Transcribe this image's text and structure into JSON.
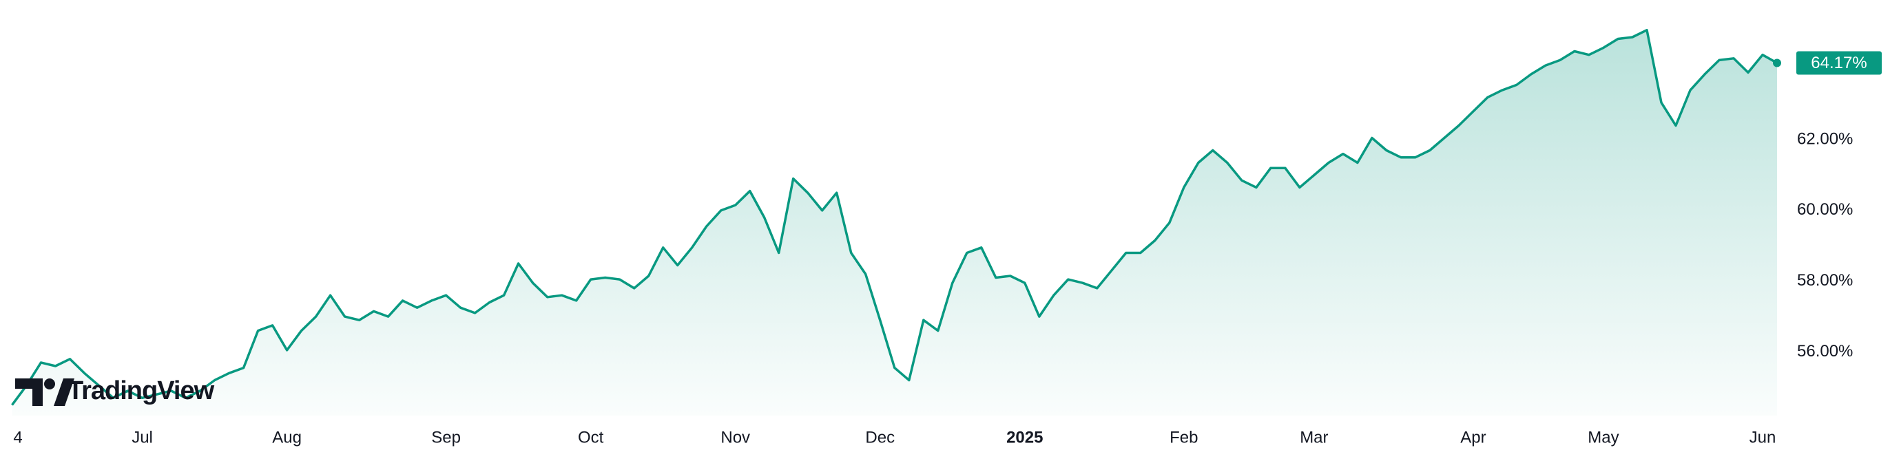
{
  "chart_data": {
    "type": "area",
    "watermark": "TradingView",
    "categories": [
      "4",
      null,
      null,
      null,
      null,
      null,
      null,
      null,
      null,
      "Jul",
      null,
      null,
      null,
      null,
      null,
      null,
      null,
      null,
      null,
      "Aug",
      null,
      null,
      null,
      null,
      null,
      null,
      null,
      null,
      null,
      null,
      "Sep",
      null,
      null,
      null,
      null,
      null,
      null,
      null,
      null,
      null,
      "Oct",
      null,
      null,
      null,
      null,
      null,
      null,
      null,
      null,
      null,
      "Nov",
      null,
      null,
      null,
      null,
      null,
      null,
      null,
      null,
      null,
      "Dec",
      null,
      null,
      null,
      null,
      null,
      null,
      null,
      null,
      null,
      "2025",
      null,
      null,
      null,
      null,
      null,
      null,
      null,
      null,
      null,
      null,
      "Feb",
      null,
      null,
      null,
      null,
      null,
      null,
      null,
      null,
      "Mar",
      null,
      null,
      null,
      null,
      null,
      null,
      null,
      null,
      null,
      null,
      "Apr",
      null,
      null,
      null,
      null,
      null,
      null,
      null,
      null,
      "May",
      null,
      null,
      null,
      null,
      null,
      null,
      null,
      null,
      null,
      null,
      "Jun",
      null
    ],
    "values": [
      54.5,
      55.05,
      55.7,
      55.6,
      55.8,
      55.4,
      55.05,
      54.7,
      54.9,
      54.7,
      54.8,
      54.9,
      54.7,
      54.9,
      55.2,
      55.4,
      55.55,
      56.6,
      56.75,
      56.05,
      56.6,
      57.0,
      57.6,
      57.0,
      56.9,
      57.15,
      57.0,
      57.45,
      57.25,
      57.45,
      57.6,
      57.25,
      57.1,
      57.4,
      57.6,
      58.5,
      57.95,
      57.55,
      57.6,
      57.45,
      58.05,
      58.1,
      58.05,
      57.8,
      58.15,
      58.95,
      58.45,
      58.95,
      59.55,
      60.0,
      60.15,
      60.55,
      59.8,
      58.8,
      60.9,
      60.5,
      60.0,
      60.5,
      58.8,
      58.2,
      56.9,
      55.55,
      55.2,
      56.9,
      56.6,
      57.95,
      58.8,
      58.95,
      58.1,
      58.15,
      57.95,
      57.0,
      57.6,
      58.05,
      57.95,
      57.8,
      58.3,
      58.8,
      58.8,
      59.15,
      59.65,
      60.65,
      61.35,
      61.7,
      61.35,
      60.85,
      60.65,
      61.2,
      61.2,
      60.65,
      61.0,
      61.35,
      61.6,
      61.35,
      62.05,
      61.7,
      61.5,
      61.5,
      61.7,
      62.05,
      62.4,
      62.8,
      63.2,
      63.4,
      63.55,
      63.85,
      64.1,
      64.25,
      64.5,
      64.4,
      64.6,
      64.85,
      64.9,
      65.1,
      63.05,
      62.4,
      63.4,
      63.85,
      64.25,
      64.3,
      63.9,
      64.4,
      64.17
    ],
    "value_labels": [
      null,
      null,
      null,
      null,
      null,
      null,
      null,
      null,
      null,
      null,
      null,
      null,
      null,
      null,
      null,
      null,
      null,
      null,
      null,
      null,
      null,
      null,
      null,
      null,
      null,
      null,
      null,
      null,
      null,
      null,
      null,
      null,
      null,
      null,
      null,
      null,
      null,
      null,
      null,
      null,
      null,
      null,
      null,
      null,
      null,
      null,
      null,
      null,
      null,
      null,
      null,
      null,
      null,
      null,
      null,
      null,
      null,
      null,
      null,
      null,
      null,
      null,
      null,
      null,
      null,
      null,
      null,
      null,
      null,
      null,
      null,
      null,
      null,
      null,
      null,
      null,
      null,
      null,
      null,
      null,
      null,
      null,
      null,
      null,
      null,
      null,
      null,
      null,
      null,
      null,
      null,
      null,
      null,
      null,
      null,
      null,
      null,
      null,
      null,
      null,
      null,
      null,
      null,
      null,
      null,
      null,
      null,
      null,
      null,
      null,
      null,
      null,
      null,
      null,
      null,
      null,
      null,
      null,
      null,
      null,
      null,
      null,
      "64.17%"
    ],
    "color": "#089981",
    "ylim": [
      54.2,
      65.95
    ],
    "yticks": [
      {
        "value": 56,
        "label": "56.00%"
      },
      {
        "value": 58,
        "label": "58.00%"
      },
      {
        "value": 60,
        "label": "60.00%"
      },
      {
        "value": 62,
        "label": "62.00%"
      }
    ],
    "grid": false
  }
}
